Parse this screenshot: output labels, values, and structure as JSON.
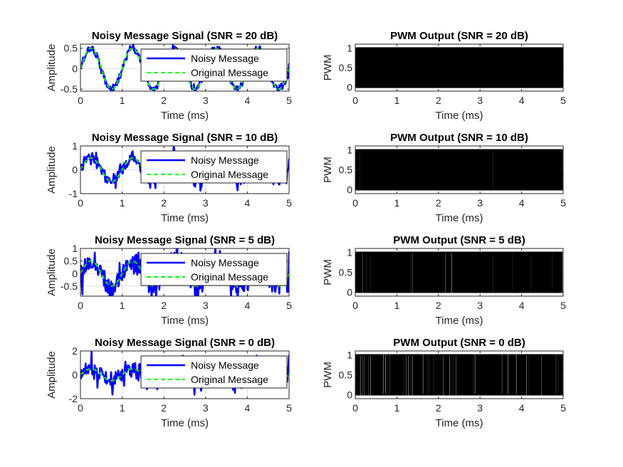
{
  "chart_data": [
    {
      "type": "line",
      "title": "Noisy Message Signal (SNR = 20 dB)",
      "xlabel": "Time (ms)",
      "ylabel": "Amplitude",
      "xlim": [
        0,
        5
      ],
      "ylim": [
        -0.55,
        0.6
      ],
      "xticks": [
        0,
        1,
        2,
        3,
        4,
        5
      ],
      "yticks": [
        -0.5,
        0,
        0.5
      ],
      "ytick_labels": [
        "-0.5",
        "0",
        "0.5"
      ],
      "grid": true,
      "legend": "top-right",
      "series": [
        {
          "name": "Noisy Message",
          "color": "#0000ff",
          "signal": "sine",
          "amplitude": 0.5,
          "frequency_khz": 1,
          "noise_std": 0.05
        },
        {
          "name": "Original Message",
          "color": "#00ff00",
          "signal": "sine",
          "amplitude": 0.5,
          "frequency_khz": 1
        }
      ]
    },
    {
      "type": "line",
      "title": "Noisy Message Signal (SNR = 10 dB)",
      "xlabel": "Time (ms)",
      "ylabel": "Amplitude",
      "xlim": [
        0,
        5
      ],
      "ylim": [
        -1,
        1
      ],
      "xticks": [
        0,
        1,
        2,
        3,
        4,
        5
      ],
      "yticks": [
        -1,
        0,
        1
      ],
      "ytick_labels": [
        "-1",
        "0",
        "1"
      ],
      "grid": true,
      "legend": "top-right",
      "series": [
        {
          "name": "Noisy Message",
          "color": "#0000ff",
          "signal": "sine",
          "amplitude": 0.5,
          "frequency_khz": 1,
          "noise_std": 0.16
        },
        {
          "name": "Original Message",
          "color": "#00ff00",
          "signal": "sine",
          "amplitude": 0.5,
          "frequency_khz": 1
        }
      ]
    },
    {
      "type": "line",
      "title": "Noisy Message Signal (SNR = 5 dB)",
      "xlabel": "Time (ms)",
      "ylabel": "Amplitude",
      "xlim": [
        0,
        5
      ],
      "ylim": [
        -0.9,
        1
      ],
      "xticks": [
        0,
        1,
        2,
        3,
        4,
        5
      ],
      "yticks": [
        -0.5,
        0,
        0.5,
        1
      ],
      "ytick_labels": [
        "-0.5",
        "0",
        "0.5",
        "1"
      ],
      "grid": true,
      "legend": "top-right",
      "series": [
        {
          "name": "Noisy Message",
          "color": "#0000ff",
          "signal": "sine",
          "amplitude": 0.5,
          "frequency_khz": 1,
          "noise_std": 0.28
        },
        {
          "name": "Original Message",
          "color": "#00ff00",
          "signal": "sine",
          "amplitude": 0.5,
          "frequency_khz": 1
        }
      ]
    },
    {
      "type": "line",
      "title": "Noisy Message Signal (SNR = 0 dB)",
      "xlabel": "Time (ms)",
      "ylabel": "Amplitude",
      "xlim": [
        0,
        5
      ],
      "ylim": [
        -2,
        2
      ],
      "xticks": [
        0,
        1,
        2,
        3,
        4,
        5
      ],
      "yticks": [
        -2,
        0,
        2
      ],
      "ytick_labels": [
        "-2",
        "0",
        "2"
      ],
      "grid": true,
      "legend": "top-right",
      "series": [
        {
          "name": "Noisy Message",
          "color": "#0000ff",
          "signal": "sine",
          "amplitude": 0.5,
          "frequency_khz": 1,
          "noise_std": 0.5
        },
        {
          "name": "Original Message",
          "color": "#00ff00",
          "signal": "sine",
          "amplitude": 0.5,
          "frequency_khz": 1
        }
      ]
    },
    {
      "type": "line",
      "title": "PWM Output (SNR = 20 dB)",
      "xlabel": "Time (ms)",
      "ylabel": "PWM",
      "xlim": [
        0,
        5
      ],
      "ylim": [
        -0.1,
        1.1
      ],
      "xticks": [
        0,
        1,
        2,
        3,
        4,
        5
      ],
      "yticks": [
        0,
        0.5,
        1
      ],
      "ytick_labels": [
        "0",
        "0.5",
        "1"
      ],
      "grid": false,
      "series": [
        {
          "color": "#000000",
          "signal": "pwm",
          "carrier_khz": 20,
          "levels": [
            0,
            1
          ],
          "noise_std": 0.05
        }
      ]
    },
    {
      "type": "line",
      "title": "PWM Output (SNR = 10 dB)",
      "xlabel": "Time (ms)",
      "ylabel": "PWM",
      "xlim": [
        0,
        5
      ],
      "ylim": [
        -0.1,
        1.1
      ],
      "xticks": [
        0,
        1,
        2,
        3,
        4,
        5
      ],
      "yticks": [
        0,
        0.5,
        1
      ],
      "ytick_labels": [
        "0",
        "0.5",
        "1"
      ],
      "grid": false,
      "series": [
        {
          "color": "#000000",
          "signal": "pwm",
          "carrier_khz": 20,
          "levels": [
            0,
            1
          ],
          "noise_std": 0.16
        }
      ]
    },
    {
      "type": "line",
      "title": "PWM Output (SNR = 5 dB)",
      "xlabel": "Time (ms)",
      "ylabel": "PWM",
      "xlim": [
        0,
        5
      ],
      "ylim": [
        -0.1,
        1.1
      ],
      "xticks": [
        0,
        1,
        2,
        3,
        4,
        5
      ],
      "yticks": [
        0,
        0.5,
        1
      ],
      "ytick_labels": [
        "0",
        "0.5",
        "1"
      ],
      "grid": false,
      "series": [
        {
          "color": "#000000",
          "signal": "pwm",
          "carrier_khz": 20,
          "levels": [
            0,
            1
          ],
          "noise_std": 0.28
        }
      ]
    },
    {
      "type": "line",
      "title": "PWM Output (SNR = 0 dB)",
      "xlabel": "Time (ms)",
      "ylabel": "PWM",
      "xlim": [
        0,
        5
      ],
      "ylim": [
        -0.1,
        1.1
      ],
      "xticks": [
        0,
        1,
        2,
        3,
        4,
        5
      ],
      "yticks": [
        0,
        0.5,
        1
      ],
      "ytick_labels": [
        "0",
        "0.5",
        "1"
      ],
      "grid": false,
      "series": [
        {
          "color": "#000000",
          "signal": "pwm",
          "carrier_khz": 20,
          "levels": [
            0,
            1
          ],
          "noise_std": 0.5
        }
      ]
    }
  ]
}
